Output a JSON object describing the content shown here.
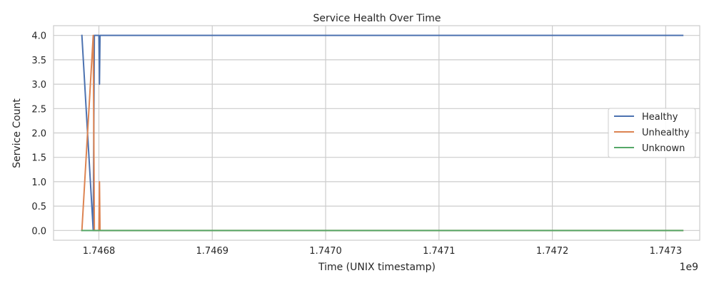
{
  "chart_data": {
    "type": "line",
    "title": "Service Health Over Time",
    "xlabel": "Time (UNIX timestamp)",
    "ylabel": "Service Count",
    "x_offset_label": "1e9",
    "xlim": [
      1746760000,
      1747330000
    ],
    "ylim": [
      -0.2,
      4.2
    ],
    "x_ticks": [
      1746800000,
      1746900000,
      1747000000,
      1747100000,
      1747200000,
      1747300000
    ],
    "x_tick_labels": [
      "1.7468",
      "1.7469",
      "1.7470",
      "1.7471",
      "1.7472",
      "1.7473"
    ],
    "y_ticks": [
      0,
      0.5,
      1,
      1.5,
      2,
      2.5,
      3,
      3.5,
      4
    ],
    "y_tick_labels": [
      "0.0",
      "0.5",
      "1.0",
      "1.5",
      "2.0",
      "2.5",
      "3.0",
      "3.5",
      "4.0"
    ],
    "grid": true,
    "legend_position": "center-right",
    "series": [
      {
        "name": "Healthy",
        "color": "#4c72b0",
        "x": [
          1746785000,
          1746795000,
          1746796000,
          1746800000,
          1746800500,
          1746801000,
          1747315000
        ],
        "y": [
          4,
          0,
          4,
          4,
          3,
          4,
          4
        ]
      },
      {
        "name": "Unhealthy",
        "color": "#dd8452",
        "x": [
          1746785000,
          1746795000,
          1746796000,
          1746800000,
          1746800500,
          1746801000,
          1747315000
        ],
        "y": [
          0,
          4,
          0,
          0,
          1,
          0,
          0
        ]
      },
      {
        "name": "Unknown",
        "color": "#55a868",
        "x": [
          1746785000,
          1747315000
        ],
        "y": [
          0,
          0
        ]
      }
    ]
  }
}
